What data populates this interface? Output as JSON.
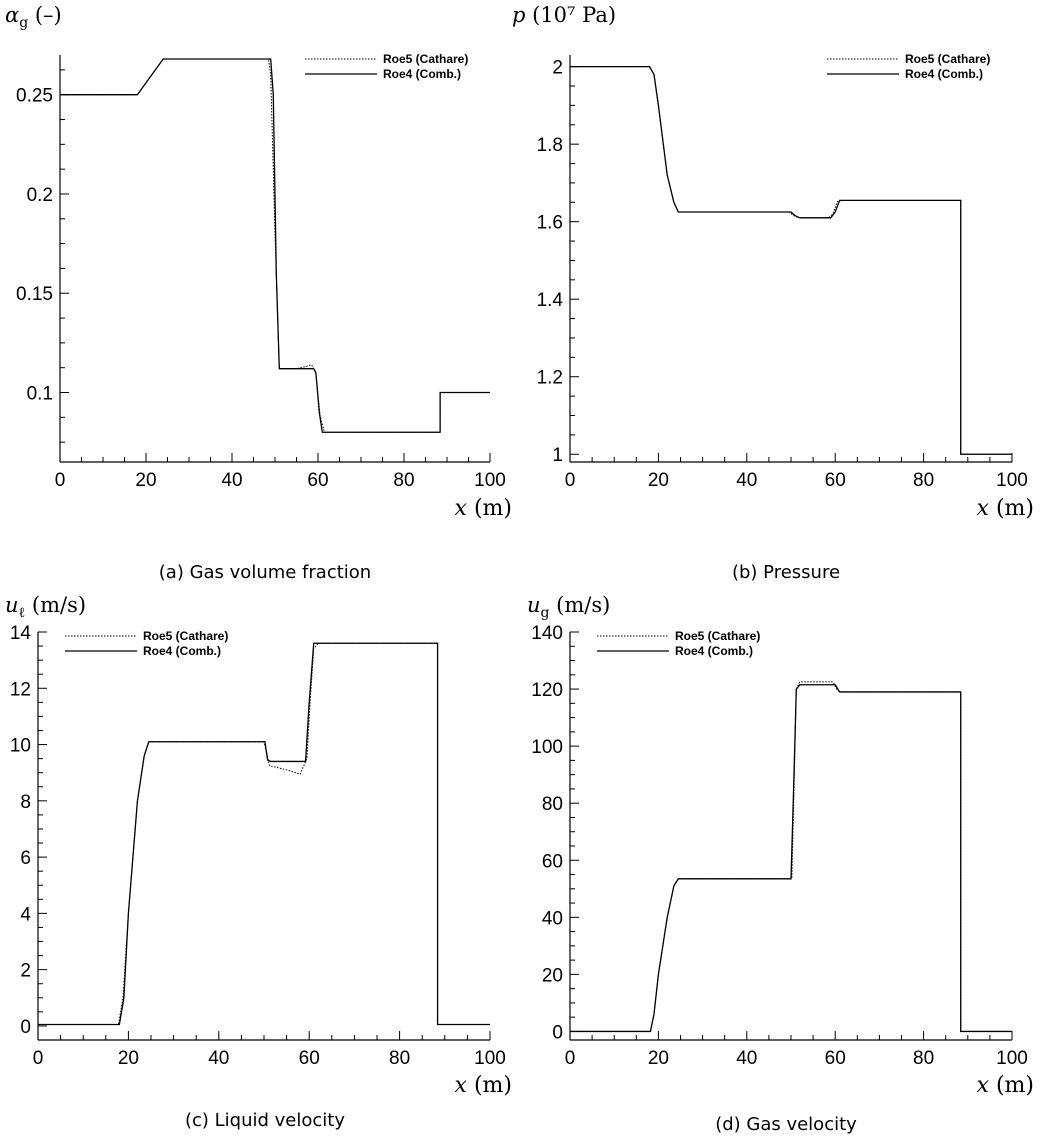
{
  "chart_data": [
    {
      "type": "line",
      "caption": "(a) Gas volume fraction",
      "ylabel_symbol": "α",
      "ylabel_sub": "g",
      "ylabel_unit": " (–)",
      "xlabel_symbol": "x",
      "xlabel_unit": " (m)",
      "xlim": [
        0,
        100
      ],
      "ylim": [
        0.065,
        0.27
      ],
      "xticks": [
        0,
        20,
        40,
        60,
        80,
        100
      ],
      "yticks": [
        0.1,
        0.15,
        0.2,
        0.25
      ],
      "ytick_labels": [
        "0.1",
        "0.15",
        "0.2",
        "0.25"
      ],
      "legend_position": "top-right",
      "series": [
        {
          "name": "Roe5 (Cathare)",
          "style": "dotted",
          "x": [
            0,
            18,
            19,
            24,
            25,
            48.5,
            49,
            50,
            51,
            53,
            55,
            57,
            58.5,
            59.5,
            60.5,
            61.5,
            88.4,
            88.4,
            100
          ],
          "y": [
            0.25,
            0.25,
            0.253,
            0.268,
            0.268,
            0.268,
            0.26,
            0.18,
            0.112,
            0.112,
            0.112,
            0.113,
            0.114,
            0.11,
            0.088,
            0.08,
            0.08,
            0.1,
            0.1
          ]
        },
        {
          "name": "Roe4 (Comb.)",
          "style": "solid",
          "x": [
            0,
            18,
            19,
            24,
            25,
            49,
            49.6,
            50.3,
            51,
            59,
            59.5,
            60.3,
            61,
            88.4,
            88.4,
            100
          ],
          "y": [
            0.25,
            0.25,
            0.253,
            0.268,
            0.268,
            0.268,
            0.25,
            0.16,
            0.112,
            0.112,
            0.11,
            0.09,
            0.08,
            0.08,
            0.1,
            0.1
          ]
        }
      ]
    },
    {
      "type": "line",
      "caption": "(b) Pressure",
      "ylabel_symbol": "p",
      "ylabel_sub": "",
      "ylabel_unit": " (10⁷ Pa)",
      "xlabel_symbol": "x",
      "xlabel_unit": " (m)",
      "xlim": [
        0,
        100
      ],
      "ylim": [
        0.98,
        2.03
      ],
      "xticks": [
        0,
        20,
        40,
        60,
        80,
        100
      ],
      "yticks": [
        1,
        1.2,
        1.4,
        1.6,
        1.8,
        2
      ],
      "ytick_labels": [
        "1",
        "1.2",
        "1.4",
        "1.6",
        "1.8",
        "2"
      ],
      "legend_position": "top-right",
      "series": [
        {
          "name": "Roe5 (Cathare)",
          "style": "dotted",
          "x": [
            0,
            18,
            19,
            20,
            22,
            23.5,
            24.5,
            49.5,
            51,
            52,
            58.5,
            59.5,
            60.5,
            61.5,
            88.4,
            88.4,
            100
          ],
          "y": [
            2.0,
            2.0,
            1.98,
            1.9,
            1.72,
            1.65,
            1.625,
            1.625,
            1.613,
            1.61,
            1.61,
            1.62,
            1.652,
            1.655,
            1.655,
            1.0,
            1.0
          ]
        },
        {
          "name": "Roe4 (Comb.)",
          "style": "solid",
          "x": [
            0,
            18,
            19,
            20,
            22,
            23.5,
            24.5,
            50,
            51,
            52,
            59,
            60,
            61,
            88.4,
            88.4,
            100
          ],
          "y": [
            2.0,
            2.0,
            1.98,
            1.9,
            1.72,
            1.65,
            1.625,
            1.625,
            1.615,
            1.61,
            1.61,
            1.625,
            1.655,
            1.655,
            1.0,
            1.0
          ]
        }
      ]
    },
    {
      "type": "line",
      "caption": "(c) Liquid velocity",
      "ylabel_symbol": "u",
      "ylabel_sub": "ℓ",
      "ylabel_unit": " (m/s)",
      "xlabel_symbol": "x",
      "xlabel_unit": " (m)",
      "xlim": [
        0,
        100
      ],
      "ylim": [
        -0.5,
        14
      ],
      "xticks": [
        0,
        20,
        40,
        60,
        80,
        100
      ],
      "yticks": [
        0,
        2,
        4,
        6,
        8,
        10,
        12,
        14
      ],
      "ytick_labels": [
        "0",
        "2",
        "4",
        "6",
        "8",
        "10",
        "12",
        "14"
      ],
      "legend_position": "top-left",
      "series": [
        {
          "name": "Roe5 (Cathare)",
          "style": "dotted",
          "x": [
            0,
            17.8,
            18.8,
            20,
            22,
            23.5,
            24.5,
            50,
            50.6,
            51.2,
            52.5,
            55,
            58,
            59.5,
            60.2,
            61,
            62,
            88.4,
            88.4,
            100
          ],
          "y": [
            0.05,
            0.05,
            1.0,
            4.0,
            8.0,
            9.6,
            10.1,
            10.1,
            9.7,
            9.25,
            9.2,
            9.1,
            8.95,
            9.5,
            11.5,
            13.4,
            13.6,
            13.6,
            0.05,
            0.05
          ]
        },
        {
          "name": "Roe4 (Comb.)",
          "style": "solid",
          "x": [
            0,
            18,
            19,
            20,
            22,
            23.5,
            24.5,
            50.2,
            50.8,
            51.5,
            59.2,
            60,
            61,
            88.4,
            88.4,
            100
          ],
          "y": [
            0.05,
            0.05,
            1.0,
            4.0,
            8.0,
            9.6,
            10.1,
            10.1,
            9.45,
            9.4,
            9.4,
            11.5,
            13.6,
            13.6,
            0.05,
            0.05
          ]
        }
      ]
    },
    {
      "type": "line",
      "caption": "(d) Gas velocity",
      "ylabel_symbol": "u",
      "ylabel_sub": "g",
      "ylabel_unit": " (m/s)",
      "xlabel_symbol": "x",
      "xlabel_unit": " (m)",
      "xlim": [
        0,
        100
      ],
      "ylim": [
        -3,
        140
      ],
      "xticks": [
        0,
        20,
        40,
        60,
        80,
        100
      ],
      "yticks": [
        0,
        20,
        40,
        60,
        80,
        100,
        120,
        140
      ],
      "ytick_labels": [
        "0",
        "20",
        "40",
        "60",
        "80",
        "100",
        "120",
        "140"
      ],
      "legend_position": "top-left",
      "series": [
        {
          "name": "Roe5 (Cathare)",
          "style": "dotted",
          "x": [
            0,
            18.2,
            19,
            20,
            22,
            23.5,
            24.5,
            50.2,
            50.6,
            51.2,
            52,
            59.5,
            60.5,
            61.5,
            88.4,
            88.4,
            100
          ],
          "y": [
            0,
            0,
            6,
            20,
            40,
            51,
            53.5,
            53.5,
            80,
            120,
            122.5,
            122.5,
            119.5,
            119,
            119,
            0,
            0
          ]
        },
        {
          "name": "Roe4 (Comb.)",
          "style": "solid",
          "x": [
            0,
            18.2,
            19,
            20,
            22,
            23.5,
            24.5,
            50,
            50.5,
            51.2,
            52,
            60,
            61,
            88.4,
            88.4,
            100
          ],
          "y": [
            0,
            0,
            6,
            20,
            40,
            51,
            53.5,
            53.5,
            80,
            120,
            121.5,
            121.5,
            119,
            119,
            0,
            0
          ]
        }
      ]
    }
  ]
}
